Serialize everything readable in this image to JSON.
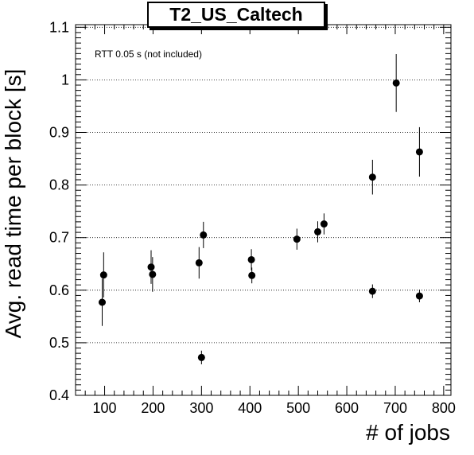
{
  "chart_data": {
    "type": "scatter",
    "title": "T2_US_Caltech",
    "xlabel": "# of jobs",
    "ylabel": "Avg. read time per block [s]",
    "annotation": "RTT 0.05 s (not included)",
    "xlim": [
      40,
      815
    ],
    "ylim": [
      0.4,
      1.105
    ],
    "xticks": [
      100,
      200,
      300,
      400,
      500,
      600,
      700,
      800
    ],
    "yticks": [
      0.4,
      0.5,
      0.6,
      0.7,
      0.8,
      0.9,
      1,
      1.1
    ],
    "ytick_labels": [
      "0.4",
      "0.5",
      "0.6",
      "0.7",
      "0.8",
      "0.9",
      "1",
      "1.1"
    ],
    "grid": "horizontal dotted",
    "points": [
      {
        "x": 95,
        "y": 0.577,
        "err": 0.045
      },
      {
        "x": 98,
        "y": 0.629,
        "err": 0.043
      },
      {
        "x": 196,
        "y": 0.644,
        "err": 0.032
      },
      {
        "x": 199,
        "y": 0.63,
        "err": 0.033
      },
      {
        "x": 295,
        "y": 0.652,
        "err": 0.03
      },
      {
        "x": 300,
        "y": 0.472,
        "err": 0.013
      },
      {
        "x": 304,
        "y": 0.705,
        "err": 0.025
      },
      {
        "x": 403,
        "y": 0.658,
        "err": 0.02
      },
      {
        "x": 404,
        "y": 0.628,
        "err": 0.015
      },
      {
        "x": 497,
        "y": 0.697,
        "err": 0.02
      },
      {
        "x": 540,
        "y": 0.711,
        "err": 0.02
      },
      {
        "x": 553,
        "y": 0.726,
        "err": 0.02
      },
      {
        "x": 653,
        "y": 0.815,
        "err": 0.033
      },
      {
        "x": 653,
        "y": 0.598,
        "err": 0.013
      },
      {
        "x": 702,
        "y": 0.994,
        "err": 0.055
      },
      {
        "x": 750,
        "y": 0.863,
        "err": 0.047
      },
      {
        "x": 750,
        "y": 0.589,
        "err": 0.012
      }
    ]
  }
}
